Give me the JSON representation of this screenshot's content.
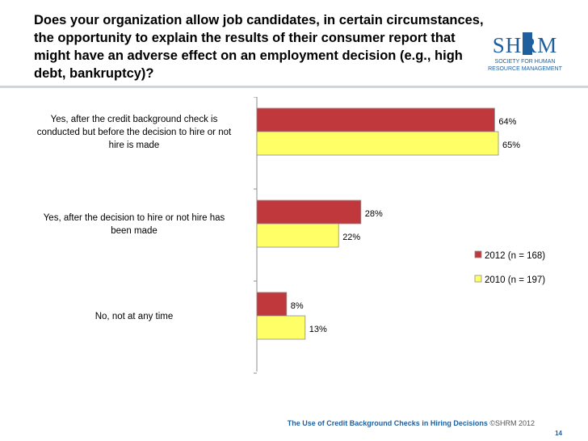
{
  "title": "Does your organization allow job candidates, in certain circumstances, the opportunity to explain the results of their consumer report that might have an adverse effect on an employment decision (e.g., high debt, bankruptcy)?",
  "logo": {
    "text": "SHRM",
    "tagline_1": "SOCIETY FOR HUMAN",
    "tagline_2": "RESOURCE MANAGEMENT"
  },
  "footer": {
    "text": "The Use of Credit Background Checks in Hiring Decisions",
    "copyright": " ©SHRM 2012",
    "page": "14"
  },
  "colors": {
    "series_2012": "#c0383b",
    "series_2010": "#ffff66",
    "footer_blue": "#1f5f9e"
  },
  "chart_data": {
    "type": "bar",
    "orientation": "horizontal",
    "categories": [
      "Yes, after the credit background check is conducted but before the decision to hire or not hire is made",
      "Yes, after the decision to hire or not hire has been made",
      "No, not at any time"
    ],
    "category_lines": [
      [
        "Yes, after the credit background check is",
        "conducted but before the decision to hire or not",
        "hire is made"
      ],
      [
        "Yes, after the decision to hire or not hire has",
        "been made"
      ],
      [
        "No, not at any time"
      ]
    ],
    "series": [
      {
        "name": "2012 (n = 168)",
        "values": [
          64,
          28,
          8
        ],
        "labels": [
          "64%",
          "28%",
          "8%"
        ],
        "color": "#c0383b"
      },
      {
        "name": "2010 (n = 197)",
        "values": [
          65,
          22,
          13
        ],
        "labels": [
          "65%",
          "22%",
          "13%"
        ],
        "color": "#ffff66"
      }
    ],
    "xlim": [
      0,
      100
    ],
    "legend": "right",
    "grid": false
  }
}
